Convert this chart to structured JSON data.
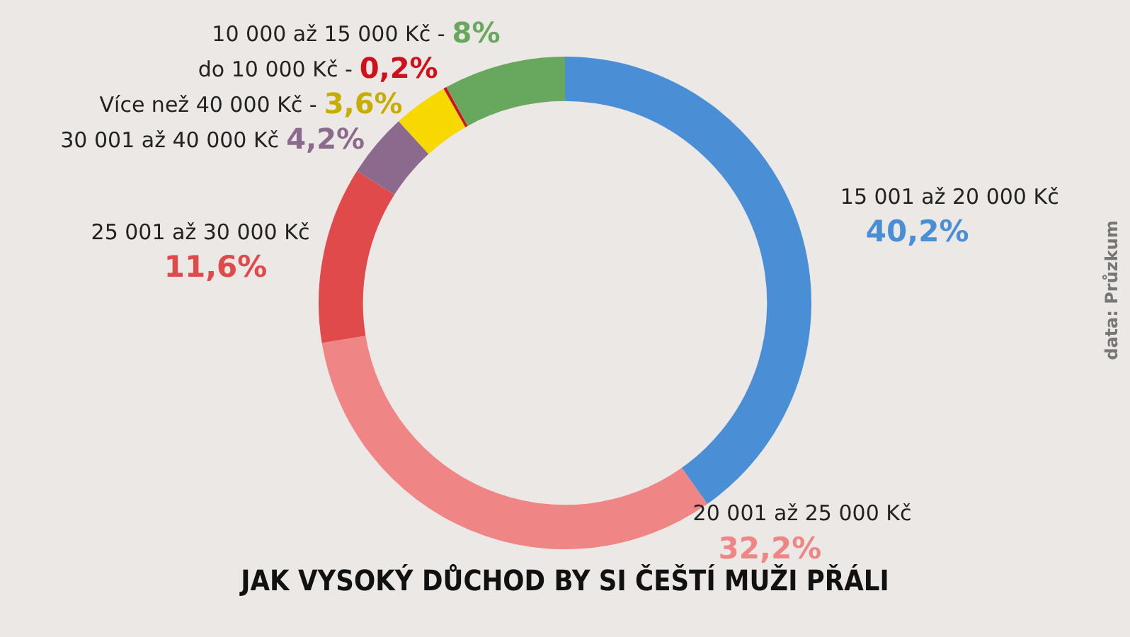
{
  "chart_data": {
    "type": "donut",
    "title": "JAK VYSOKÝ DŮCHOD BY SI ČEŠTÍ MUŽI PŘÁLI",
    "categories": [
      "15 001 až 20 000 Kč",
      "20 001 až 25 000 Kč",
      "25 001 až 30 000 Kč",
      "30 001 až 40 000 Kč",
      "Více než 40 000 Kč -",
      "do 10 000 Kč -",
      "10 000 až 15 000 Kč -"
    ],
    "values": [
      40.2,
      32.2,
      11.6,
      4.2,
      3.6,
      0.2,
      8
    ],
    "value_labels": [
      "40,2%",
      "32,2%",
      "11,6%",
      "4,2%",
      "3,6%",
      "0,2%",
      "8%"
    ],
    "colors": [
      "#4a8fd6",
      "#ef8585",
      "#e04a4a",
      "#8c6a8e",
      "#f7d800",
      "#d0101a",
      "#68a85e"
    ],
    "annotations": [
      "data: Průzkum"
    ],
    "legend": false
  }
}
